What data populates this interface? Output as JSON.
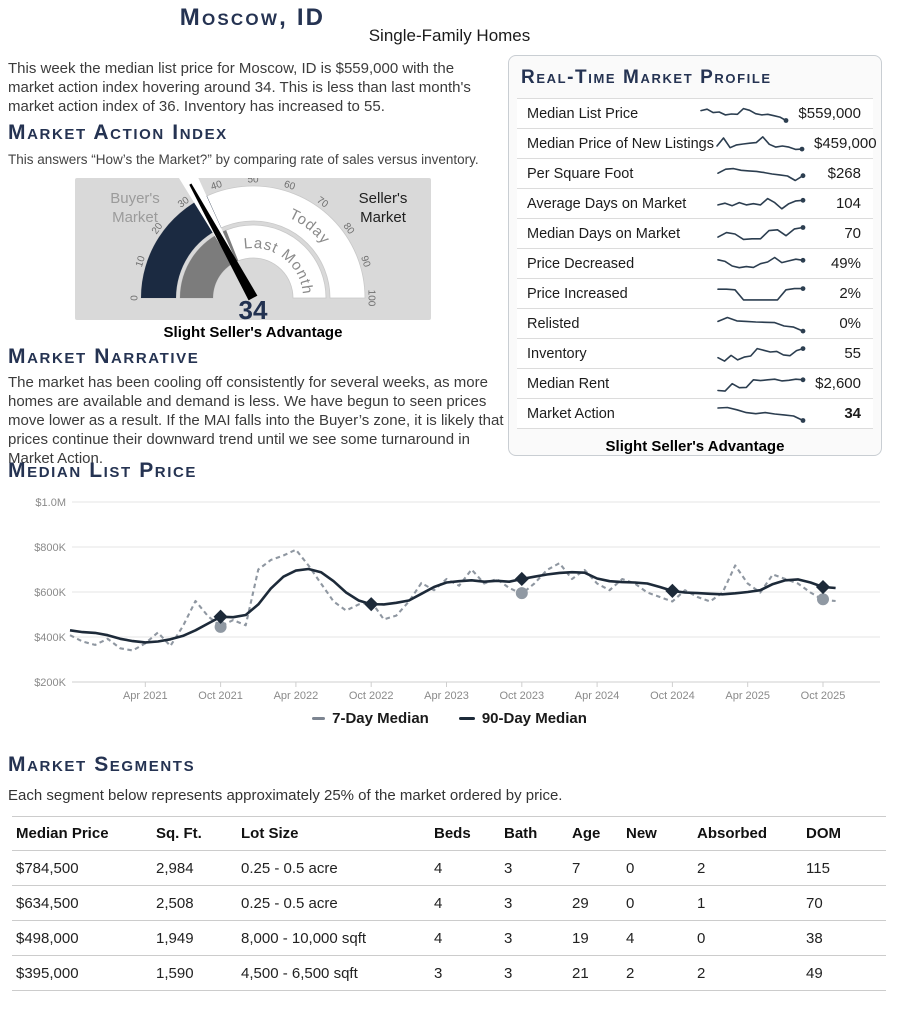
{
  "page": {
    "title": "Moscow, ID",
    "subtitle": "Single-Family Homes"
  },
  "intro": "This week the median list price for Moscow, ID is $559,000 with the market action index hovering around 34. This is less than last month's market action index of 36. Inventory has increased to 55.",
  "mai": {
    "heading": "Market Action Index",
    "subtext": "This answers “How’s the Market?” by comparing rate of sales versus inventory.",
    "gauge": {
      "value": 34,
      "last_month_value": 36,
      "min": 0,
      "max": 100,
      "ticks": [
        0,
        10,
        20,
        30,
        40,
        50,
        60,
        70,
        80,
        90,
        100
      ],
      "left_label": "Buyer's Market",
      "right_label": "Seller's Market",
      "inner_band_label": "Last Month",
      "outer_band_label": "Today",
      "status": "Slight Seller's Advantage",
      "colors": {
        "today_fill": "#1b2a41",
        "last_month_fill": "#7c7c7c",
        "background": "#d9d9d9",
        "needle": "#000000",
        "value_text": "#223150"
      }
    }
  },
  "narrative": {
    "heading": "Market Narrative",
    "text": "The market has been cooling off consistently for several weeks, as more homes are available and demand is less. We have begun to seen prices move lower as a result. If the MAI falls into the Buyer’s zone, it is likely that prices continue their downward trend until we see some turnaround in Market Action."
  },
  "profile": {
    "heading": "Real-Time Market Profile",
    "footer": "Slight Seller's Advantage",
    "rows": [
      {
        "label": "Median List Price",
        "value": "$559,000",
        "bold": false,
        "spark": [
          0.3,
          0.22,
          0.42,
          0.38,
          0.55,
          0.5,
          0.52,
          0.18,
          0.28,
          0.48,
          0.55,
          0.52,
          0.6,
          0.68,
          0.88
        ]
      },
      {
        "label": "Median Price of New Listings",
        "value": "$459,000",
        "bold": false,
        "spark": [
          0.62,
          0.15,
          0.72,
          0.55,
          0.5,
          0.45,
          0.42,
          0.08,
          0.52,
          0.68,
          0.62,
          0.68,
          0.82,
          0.8
        ]
      },
      {
        "label": "Per Square Foot",
        "value": "$268",
        "bold": false,
        "spark": [
          0.45,
          0.22,
          0.18,
          0.28,
          0.32,
          0.35,
          0.42,
          0.5,
          0.55,
          0.62,
          0.88,
          0.6
        ]
      },
      {
        "label": "Average Days on Market",
        "value": "104",
        "bold": false,
        "spark": [
          0.55,
          0.45,
          0.6,
          0.42,
          0.55,
          0.48,
          0.55,
          0.18,
          0.42,
          0.78,
          0.48,
          0.32,
          0.28
        ]
      },
      {
        "label": "Median Days on Market",
        "value": "70",
        "bold": false,
        "spark": [
          0.68,
          0.42,
          0.5,
          0.82,
          0.78,
          0.78,
          0.3,
          0.25,
          0.6,
          0.2,
          0.12
        ]
      },
      {
        "label": "Price Decreased",
        "value": "49%",
        "bold": false,
        "spark": [
          0.25,
          0.35,
          0.62,
          0.72,
          0.65,
          0.7,
          0.48,
          0.38,
          0.12,
          0.42,
          0.32,
          0.22,
          0.28
        ]
      },
      {
        "label": "Price Increased",
        "value": "2%",
        "bold": false,
        "spark": [
          0.22,
          0.22,
          0.25,
          0.85,
          0.85,
          0.85,
          0.85,
          0.85,
          0.25,
          0.18,
          0.18
        ]
      },
      {
        "label": "Relisted",
        "value": "0%",
        "bold": false,
        "spark": [
          0.35,
          0.12,
          0.32,
          0.35,
          0.38,
          0.4,
          0.42,
          0.62,
          0.68,
          0.92
        ]
      },
      {
        "label": "Inventory",
        "value": "55",
        "bold": false,
        "spark": [
          0.72,
          0.92,
          0.58,
          0.85,
          0.68,
          0.62,
          0.18,
          0.28,
          0.38,
          0.35,
          0.55,
          0.6,
          0.3,
          0.18
        ]
      },
      {
        "label": "Median Rent",
        "value": "$2,600",
        "bold": false,
        "spark": [
          0.88,
          0.92,
          0.48,
          0.72,
          0.7,
          0.25,
          0.3,
          0.25,
          0.22,
          0.32,
          0.28,
          0.22,
          0.25
        ]
      },
      {
        "label": "Market Action",
        "value": "34",
        "bold": true,
        "spark": [
          0.15,
          0.12,
          0.25,
          0.42,
          0.48,
          0.42,
          0.5,
          0.55,
          0.62,
          0.88
        ]
      }
    ]
  },
  "chart_heading": "Median List Price",
  "chart_data": {
    "type": "line",
    "title": "Median List Price",
    "units": "USD thousands",
    "x_start": "Oct 2020",
    "x_interval": "monthly",
    "months_total": 62,
    "ylim": [
      200,
      1000
    ],
    "grid": true,
    "y_ticks": [
      {
        "label": "$1.0M",
        "value": 1000
      },
      {
        "label": "$800K",
        "value": 800
      },
      {
        "label": "$600K",
        "value": 600
      },
      {
        "label": "$400K",
        "value": 400
      },
      {
        "label": "$200K",
        "value": 200
      }
    ],
    "x_ticks": [
      "Apr 2021",
      "Oct 2021",
      "Apr 2022",
      "Oct 2022",
      "Apr 2023",
      "Oct 2023",
      "Apr 2024",
      "Oct 2024",
      "Apr 2025",
      "Oct 2025"
    ],
    "x_tick_indices": [
      6,
      12,
      18,
      24,
      30,
      36,
      42,
      48,
      54,
      60
    ],
    "legend_position": "bottom",
    "series": [
      {
        "name": "7-Day Median",
        "style": "dashed",
        "color": "#8f97a1",
        "values": [
          408,
          380,
          365,
          392,
          350,
          340,
          372,
          420,
          360,
          448,
          560,
          492,
          448,
          475,
          452,
          700,
          742,
          762,
          788,
          718,
          638,
          558,
          518,
          545,
          558,
          478,
          495,
          558,
          640,
          608,
          658,
          628,
          700,
          638,
          658,
          618,
          592,
          638,
          698,
          728,
          658,
          698,
          638,
          608,
          658,
          638,
          598,
          578,
          558,
          608,
          578,
          558,
          598,
          718,
          638,
          598,
          678,
          658,
          638,
          598,
          565,
          560
        ]
      },
      {
        "name": "90-Day Median",
        "style": "solid",
        "color": "#1d2a39",
        "values": [
          430,
          422,
          418,
          408,
          392,
          382,
          376,
          380,
          390,
          405,
          430,
          460,
          490,
          488,
          498,
          545,
          615,
          668,
          695,
          702,
          688,
          648,
          598,
          562,
          546,
          545,
          552,
          562,
          592,
          622,
          642,
          648,
          652,
          646,
          650,
          646,
          658,
          668,
          678,
          685,
          688,
          686,
          660,
          648,
          644,
          642,
          638,
          622,
          605,
          598,
          595,
          592,
          590,
          594,
          600,
          608,
          635,
          652,
          656,
          642,
          622,
          618
        ]
      }
    ],
    "markers": {
      "diamonds_on": "90-Day Median",
      "diamonds": [
        {
          "month": "Oct 2021",
          "index": 12,
          "value": 490
        },
        {
          "month": "Oct 2022",
          "index": 24,
          "value": 546
        },
        {
          "month": "Oct 2023",
          "index": 36,
          "value": 658
        },
        {
          "month": "Oct 2024",
          "index": 48,
          "value": 605
        },
        {
          "month": "Oct 2025",
          "index": 60,
          "value": 622
        }
      ],
      "circles_on": "7-Day Median",
      "circles": [
        {
          "month": "Oct 2021",
          "index": 12,
          "value": 445
        },
        {
          "month": "Oct 2023",
          "index": 36,
          "value": 595
        },
        {
          "month": "Oct 2025",
          "index": 60,
          "value": 568
        }
      ]
    }
  },
  "segments": {
    "heading": "Market Segments",
    "subtext": "Each segment below represents approximately 25% of the market ordered by price.",
    "columns": [
      "Median Price",
      "Sq. Ft.",
      "Lot Size",
      "Beds",
      "Bath",
      "Age",
      "New",
      "Absorbed",
      "DOM"
    ],
    "rows": [
      [
        "$784,500",
        "2,984",
        "0.25 - 0.5 acre",
        "4",
        "3",
        "7",
        "0",
        "2",
        "115"
      ],
      [
        "$634,500",
        "2,508",
        "0.25 - 0.5 acre",
        "4",
        "3",
        "29",
        "0",
        "1",
        "70"
      ],
      [
        "$498,000",
        "1,949",
        "8,000 - 10,000 sqft",
        "4",
        "3",
        "19",
        "4",
        "0",
        "38"
      ],
      [
        "$395,000",
        "1,590",
        "4,500 - 6,500 sqft",
        "3",
        "3",
        "21",
        "2",
        "2",
        "49"
      ]
    ]
  }
}
